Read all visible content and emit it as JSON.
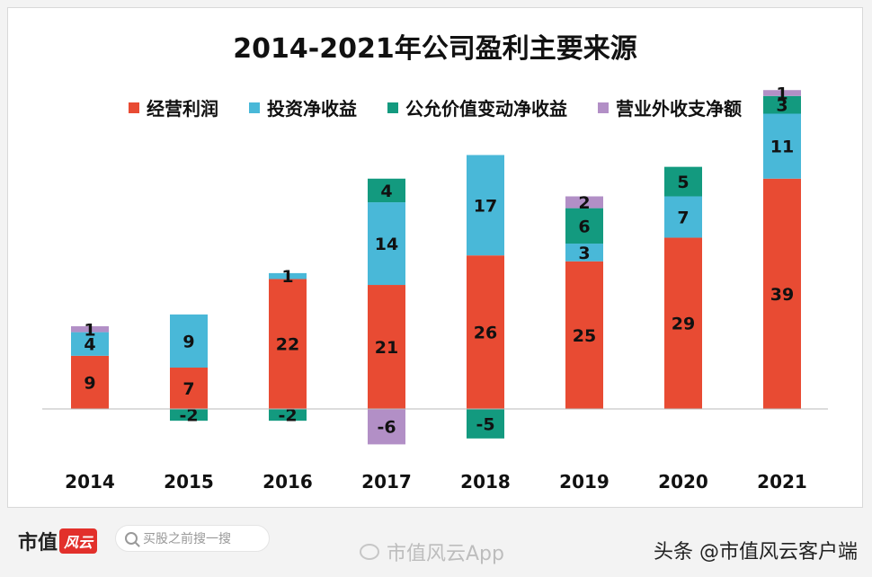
{
  "chart_data": {
    "type": "bar",
    "stacked": true,
    "title": "2014-2021年公司盈利主要来源",
    "categories": [
      "2014",
      "2015",
      "2016",
      "2017",
      "2018",
      "2019",
      "2020",
      "2021"
    ],
    "series": [
      {
        "name": "经营利润",
        "color": "#e84b33",
        "values": [
          9,
          7,
          22,
          21,
          26,
          25,
          29,
          39
        ]
      },
      {
        "name": "投资净收益",
        "color": "#49b8d8",
        "values": [
          4,
          9,
          1,
          14,
          17,
          3,
          7,
          11
        ]
      },
      {
        "name": "公允价值变动净收益",
        "color": "#139a7f",
        "values": [
          0,
          -2,
          -2,
          4,
          -5,
          6,
          5,
          3
        ]
      },
      {
        "name": "营业外收支净额",
        "color": "#b28fc6",
        "values": [
          1,
          0,
          0,
          -6,
          0,
          2,
          0,
          1
        ]
      }
    ],
    "legend": "top",
    "grid": false
  },
  "footer": {
    "brand_text": "市值",
    "brand_badge": "风云",
    "search_placeholder": "买股之前搜一搜",
    "weibo_text": "市值风云App",
    "credit": "头条 @市值风云客户端"
  }
}
